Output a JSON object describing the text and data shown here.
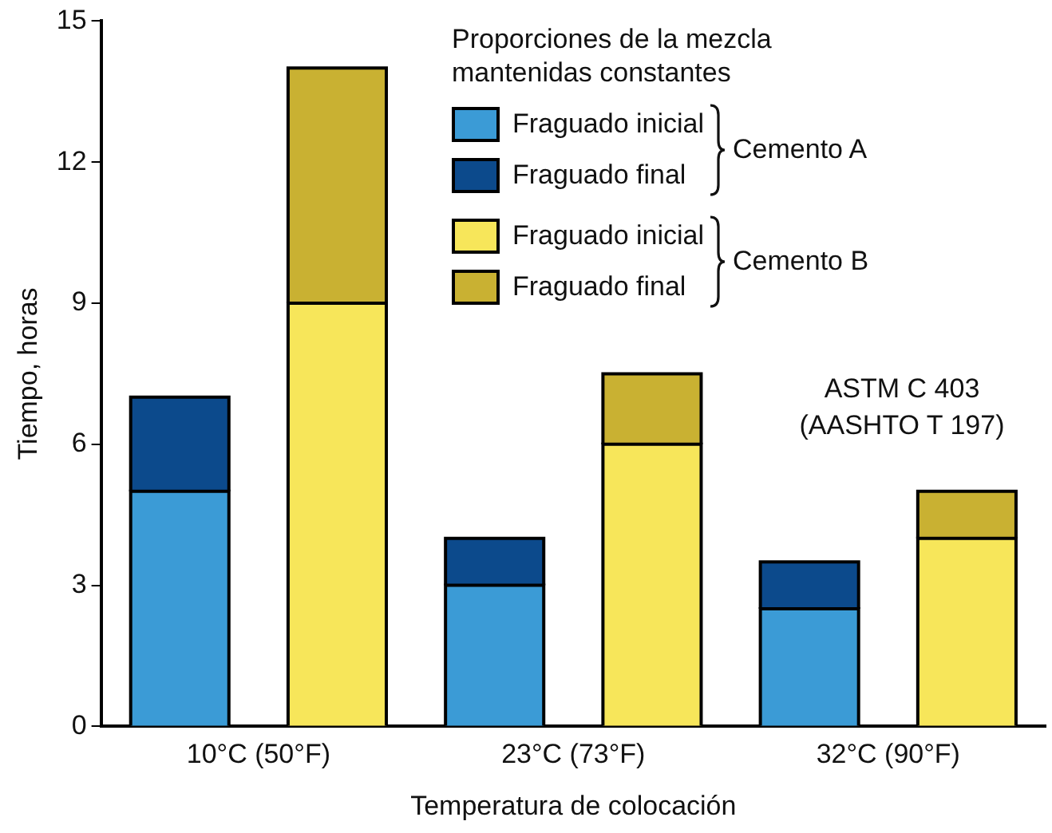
{
  "chart_data": {
    "type": "bar",
    "stacked": true,
    "xlabel": "Temperatura de colocación",
    "ylabel": "Tiempo, horas",
    "legend_title": "Proporciones de la mezcla mantenidas constantes",
    "categories": [
      "10°C (50°F)",
      null,
      "23°C (73°F)",
      null,
      "32°C (90°F)",
      null
    ],
    "series": [
      {
        "name": "Fraguado inicial",
        "color": "#3b9bd6",
        "values": [
          5,
          null,
          3,
          null,
          2.5,
          null
        ]
      },
      {
        "name": "Fraguado final",
        "color": "#0c4a8c",
        "values": [
          2,
          null,
          1,
          null,
          1,
          null
        ]
      },
      {
        "name": "Fraguado inicial",
        "color": "#f7e65a",
        "values": [
          null,
          9,
          null,
          6,
          null,
          4
        ]
      },
      {
        "name": "Fraguado final",
        "color": "#c9b132",
        "values": [
          null,
          5,
          null,
          1.5,
          null,
          1
        ]
      }
    ],
    "ylim": [
      0,
      15
    ],
    "yticks": [
      0,
      3,
      6,
      9,
      12,
      15
    ],
    "grid": false,
    "legend": "top right",
    "annotations": [
      "Cemento A",
      "Cemento B",
      "ASTM C 403 (AASHTO T 197)"
    ]
  }
}
